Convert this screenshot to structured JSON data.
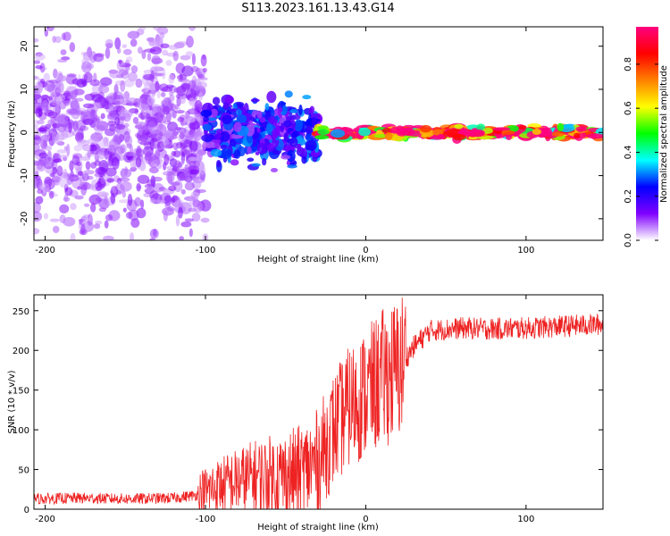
{
  "figure_title": "S113.2023.161.13.43.G14",
  "chart_data": [
    {
      "type": "heatmap",
      "xlabel": "Height of straight line (km)",
      "ylabel": "Frequency (Hz)",
      "xlim": [
        -207,
        148
      ],
      "ylim": [
        -25,
        24.5
      ],
      "x_ticks": [
        -200,
        -100,
        0,
        100
      ],
      "y_ticks": [
        -20,
        -10,
        0,
        10,
        20
      ],
      "colorbar": {
        "label": "Normalized spectral amplitude",
        "range": [
          0,
          0.97
        ],
        "ticks": [
          0.0,
          0.2,
          0.4,
          0.6,
          0.8
        ],
        "tick_labels": [
          "0.0",
          "0.2",
          "0.4",
          "0.6",
          "0.8"
        ],
        "colormap": [
          "#ffffff",
          "#8000ff",
          "#0000ff",
          "#00ffff",
          "#00ff00",
          "#ffff00",
          "#ff8000",
          "#ff0000",
          "#ff0080"
        ]
      },
      "regions": [
        {
          "x_range": [
            -207,
            -100
          ],
          "freq_spread": 24,
          "amplitude": 0.08,
          "description": "noise speckle"
        },
        {
          "x_range": [
            -100,
            -30
          ],
          "freq_spread": 10,
          "amplitude": 0.2
        },
        {
          "x_range": [
            -30,
            148
          ],
          "freq_center": 0,
          "freq_spread": 2,
          "amplitude": 0.75
        }
      ]
    },
    {
      "type": "line",
      "xlabel": "Height of straight line (km)",
      "ylabel": "SNR (10 * v/v)",
      "xlim": [
        -207,
        148
      ],
      "ylim": [
        0,
        270
      ],
      "x_ticks": [
        -200,
        -100,
        0,
        100
      ],
      "y_ticks": [
        0,
        50,
        100,
        150,
        200,
        250
      ],
      "color": "#ee2222",
      "series": [
        {
          "x": [
            -207,
            -180,
            -150,
            -120,
            -105,
            -90,
            -70,
            -50,
            -40,
            -30,
            -20,
            -10,
            0,
            10,
            20,
            30,
            40,
            60,
            80,
            100,
            120,
            148
          ],
          "y": [
            13,
            14,
            13,
            14,
            18,
            30,
            40,
            42,
            45,
            60,
            100,
            130,
            145,
            165,
            175,
            205,
            225,
            228,
            227,
            228,
            230,
            233
          ]
        }
      ]
    }
  ]
}
